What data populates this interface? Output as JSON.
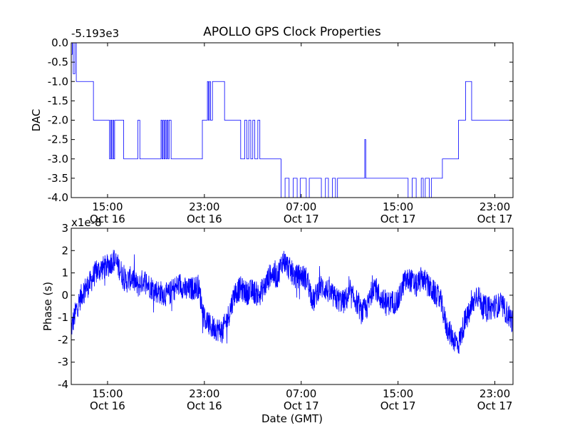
{
  "chart_data": [
    {
      "type": "line",
      "title": "APOLLO GPS Clock Properties",
      "xlabel": "",
      "ylabel": "DAC",
      "offset_label": "-5.193e3",
      "ylim": [
        -4.0,
        0.0
      ],
      "yticks": [
        {
          "value": 0.0,
          "label": "0.0"
        },
        {
          "value": -0.5,
          "label": "-0.5"
        },
        {
          "value": -1.0,
          "label": "-1.0"
        },
        {
          "value": -1.5,
          "label": "-1.5"
        },
        {
          "value": -2.0,
          "label": "-2.0"
        },
        {
          "value": -2.5,
          "label": "-2.5"
        },
        {
          "value": -3.0,
          "label": "-3.0"
        },
        {
          "value": -3.5,
          "label": "-3.5"
        },
        {
          "value": -4.0,
          "label": "-4.0"
        }
      ],
      "xlim": [
        "2009-10-16 12:00",
        "2009-10-18 00:30"
      ],
      "xticks": [
        {
          "value": "2009-10-16 15:00",
          "line1": "15:00",
          "line2": "Oct 16"
        },
        {
          "value": "2009-10-16 23:00",
          "line1": "23:00",
          "line2": "Oct 16"
        },
        {
          "value": "2009-10-17 07:00",
          "line1": "07:00",
          "line2": "Oct 17"
        },
        {
          "value": "2009-10-17 15:00",
          "line1": "15:00",
          "line2": "Oct 17"
        },
        {
          "value": "2009-10-17 23:00",
          "line1": "23:00",
          "line2": "Oct 17"
        }
      ],
      "grid": false,
      "series_color": "#0000ff",
      "series": [
        {
          "style": "step",
          "x": [
            "2009-10-16 12:00",
            "2009-10-16 12:05",
            "2009-10-16 12:10",
            "2009-10-16 12:18",
            "2009-10-16 12:25",
            "2009-10-16 12:35",
            "2009-10-16 12:40",
            "2009-10-16 13:50",
            "2009-10-16 15:00",
            "2009-10-16 15:10",
            "2009-10-16 15:15",
            "2009-10-16 15:20",
            "2009-10-16 15:25",
            "2009-10-16 15:30",
            "2009-10-16 15:35",
            "2009-10-16 16:10",
            "2009-10-16 16:20",
            "2009-10-16 16:30",
            "2009-10-16 16:40",
            "2009-10-16 17:30",
            "2009-10-16 17:40",
            "2009-10-16 17:50",
            "2009-10-16 19:20",
            "2009-10-16 19:25",
            "2009-10-16 19:30",
            "2009-10-16 19:35",
            "2009-10-16 19:40",
            "2009-10-16 19:45",
            "2009-10-16 19:50",
            "2009-10-16 19:55",
            "2009-10-16 20:00",
            "2009-10-16 20:05",
            "2009-10-16 20:15",
            "2009-10-16 20:20",
            "2009-10-16 22:50",
            "2009-10-16 23:00",
            "2009-10-16 23:15",
            "2009-10-16 23:20",
            "2009-10-16 23:25",
            "2009-10-16 23:30",
            "2009-10-16 23:35",
            "2009-10-16 23:40",
            "2009-10-17 00:20",
            "2009-10-17 00:40",
            "2009-10-17 01:40",
            "2009-10-17 02:00",
            "2009-10-17 02:20",
            "2009-10-17 02:30",
            "2009-10-17 02:40",
            "2009-10-17 02:50",
            "2009-10-17 03:00",
            "2009-10-17 03:10",
            "2009-10-17 03:25",
            "2009-10-17 03:35",
            "2009-10-17 03:45",
            "2009-10-17 04:40",
            "2009-10-17 05:20",
            "2009-10-17 05:40",
            "2009-10-17 06:00",
            "2009-10-17 06:20",
            "2009-10-17 06:40",
            "2009-10-17 06:55",
            "2009-10-17 07:05",
            "2009-10-17 07:25",
            "2009-10-17 07:40",
            "2009-10-17 08:20",
            "2009-10-17 08:40",
            "2009-10-17 09:00",
            "2009-10-17 09:15",
            "2009-10-17 09:35",
            "2009-10-17 09:50",
            "2009-10-17 10:00",
            "2009-10-17 10:20",
            "2009-10-17 12:10",
            "2009-10-17 12:15",
            "2009-10-17 12:20",
            "2009-10-17 12:45",
            "2009-10-17 13:00",
            "2009-10-17 15:00",
            "2009-10-17 15:15",
            "2009-10-17 15:35",
            "2009-10-17 15:50",
            "2009-10-17 16:10",
            "2009-10-17 16:30",
            "2009-10-17 16:55",
            "2009-10-17 17:05",
            "2009-10-17 17:15",
            "2009-10-17 17:35",
            "2009-10-17 17:45",
            "2009-10-17 18:40",
            "2009-10-17 19:00",
            "2009-10-17 19:10",
            "2009-10-17 19:15",
            "2009-10-17 19:25",
            "2009-10-17 20:00",
            "2009-10-17 20:30",
            "2009-10-17 20:35",
            "2009-10-17 20:55",
            "2009-10-17 21:05",
            "2009-10-17 23:45",
            "2009-10-18 00:25",
            "2009-10-18 00:30"
          ],
          "y": [
            -0.3,
            0.0,
            -0.8,
            0.0,
            -1.0,
            -1.0,
            -1.0,
            -2.0,
            -2.0,
            -3.0,
            -2.0,
            -3.0,
            -2.0,
            -3.0,
            -2.0,
            -2.0,
            -3.0,
            -3.0,
            -3.0,
            -2.0,
            -3.0,
            -3.0,
            -3.0,
            -2.0,
            -3.0,
            -2.0,
            -3.0,
            -2.0,
            -3.0,
            -2.0,
            -3.0,
            -2.0,
            -3.0,
            -3.0,
            -2.0,
            -2.0,
            -1.0,
            -2.0,
            -1.0,
            -2.0,
            -2.0,
            -1.0,
            -1.0,
            -2.0,
            -2.0,
            -3.0,
            -2.0,
            -3.0,
            -2.0,
            -3.0,
            -2.0,
            -3.0,
            -2.0,
            -3.0,
            -3.0,
            -3.0,
            -4.0,
            -3.5,
            -4.0,
            -3.5,
            -4.0,
            -3.5,
            -3.5,
            -4.0,
            -3.5,
            -3.5,
            -4.0,
            -3.5,
            -4.0,
            -3.5,
            -4.0,
            -3.5,
            -3.5,
            -3.5,
            -2.5,
            -3.5,
            -3.5,
            -3.5,
            -3.5,
            -3.5,
            -3.5,
            -4.0,
            -3.5,
            -4.0,
            -3.5,
            -4.0,
            -3.5,
            -4.0,
            -3.5,
            -3.0,
            -3.0,
            -3.0,
            -3.0,
            -3.0,
            -2.0,
            -2.0,
            -1.0,
            -1.0,
            -2.0,
            -2.0,
            -2.0,
            -1.0
          ]
        }
      ]
    },
    {
      "type": "line",
      "title": "",
      "xlabel": "Date (GMT)",
      "ylabel": "Phase (s)",
      "offset_label": "x1e-8",
      "ylim": [
        -4,
        3
      ],
      "yticks": [
        {
          "value": 3,
          "label": "3"
        },
        {
          "value": 2,
          "label": "2"
        },
        {
          "value": 1,
          "label": "1"
        },
        {
          "value": 0,
          "label": "0"
        },
        {
          "value": -1,
          "label": "-1"
        },
        {
          "value": -2,
          "label": "-2"
        },
        {
          "value": -3,
          "label": "-3"
        },
        {
          "value": -4,
          "label": "-4"
        }
      ],
      "xlim": [
        "2009-10-16 12:00",
        "2009-10-18 00:30"
      ],
      "xticks": [
        {
          "value": "2009-10-16 15:00",
          "line1": "15:00",
          "line2": "Oct 16"
        },
        {
          "value": "2009-10-16 23:00",
          "line1": "23:00",
          "line2": "Oct 16"
        },
        {
          "value": "2009-10-17 07:00",
          "line1": "07:00",
          "line2": "Oct 17"
        },
        {
          "value": "2009-10-17 15:00",
          "line1": "15:00",
          "line2": "Oct 17"
        },
        {
          "value": "2009-10-17 23:00",
          "line1": "23:00",
          "line2": "Oct 17"
        }
      ],
      "grid": false,
      "series_color": "#0000ff",
      "series": [
        {
          "style": "line",
          "x": [
            "2009-10-16 12:00",
            "2009-10-16 12:30",
            "2009-10-16 13:00",
            "2009-10-16 13:30",
            "2009-10-16 14:00",
            "2009-10-16 14:30",
            "2009-10-16 15:00",
            "2009-10-16 15:30",
            "2009-10-16 16:00",
            "2009-10-16 16:30",
            "2009-10-16 17:00",
            "2009-10-16 17:30",
            "2009-10-16 18:00",
            "2009-10-16 18:30",
            "2009-10-16 19:00",
            "2009-10-16 19:30",
            "2009-10-16 20:00",
            "2009-10-16 20:30",
            "2009-10-16 21:00",
            "2009-10-16 21:30",
            "2009-10-16 22:00",
            "2009-10-16 22:30",
            "2009-10-16 23:00",
            "2009-10-16 23:30",
            "2009-10-17 00:00",
            "2009-10-17 00:30",
            "2009-10-17 01:00",
            "2009-10-17 01:30",
            "2009-10-17 02:00",
            "2009-10-17 02:30",
            "2009-10-17 03:00",
            "2009-10-17 03:30",
            "2009-10-17 04:00",
            "2009-10-17 04:30",
            "2009-10-17 05:00",
            "2009-10-17 05:30",
            "2009-10-17 06:00",
            "2009-10-17 06:30",
            "2009-10-17 07:00",
            "2009-10-17 07:30",
            "2009-10-17 08:00",
            "2009-10-17 08:30",
            "2009-10-17 09:00",
            "2009-10-17 09:30",
            "2009-10-17 10:00",
            "2009-10-17 10:30",
            "2009-10-17 11:00",
            "2009-10-17 11:30",
            "2009-10-17 12:00",
            "2009-10-17 12:30",
            "2009-10-17 13:00",
            "2009-10-17 13:30",
            "2009-10-17 14:00",
            "2009-10-17 14:30",
            "2009-10-17 15:00",
            "2009-10-17 15:30",
            "2009-10-17 16:00",
            "2009-10-17 16:30",
            "2009-10-17 17:00",
            "2009-10-17 17:30",
            "2009-10-17 18:00",
            "2009-10-17 18:30",
            "2009-10-17 19:00",
            "2009-10-17 19:30",
            "2009-10-17 20:00",
            "2009-10-17 20:30",
            "2009-10-17 21:00",
            "2009-10-17 21:30",
            "2009-10-17 22:00",
            "2009-10-17 22:30",
            "2009-10-17 23:00",
            "2009-10-17 23:30",
            "2009-10-18 00:00",
            "2009-10-18 00:30"
          ],
          "y": [
            -1.5,
            -0.5,
            0.2,
            0.5,
            1.0,
            1.2,
            1.3,
            1.6,
            1.2,
            0.6,
            0.8,
            0.4,
            0.7,
            0.4,
            0.2,
            0.1,
            0.0,
            0.3,
            0.5,
            0.2,
            0.3,
            0.4,
            -1.0,
            -1.4,
            -1.5,
            -1.6,
            -0.9,
            0.1,
            0.3,
            0.1,
            0.2,
            0.0,
            0.4,
            1.0,
            0.8,
            1.6,
            1.2,
            0.8,
            0.9,
            0.7,
            -0.3,
            0.4,
            0.3,
            0.0,
            -0.2,
            -0.3,
            0.0,
            -0.2,
            -0.8,
            -0.5,
            0.5,
            -0.1,
            -0.4,
            -0.3,
            -0.3,
            0.6,
            0.7,
            0.4,
            0.8,
            0.4,
            0.1,
            -0.2,
            -1.4,
            -1.9,
            -2.2,
            -1.2,
            -0.7,
            0.1,
            -0.5,
            -0.6,
            -0.5,
            -0.4,
            -0.8,
            -1.2
          ]
        }
      ]
    }
  ]
}
